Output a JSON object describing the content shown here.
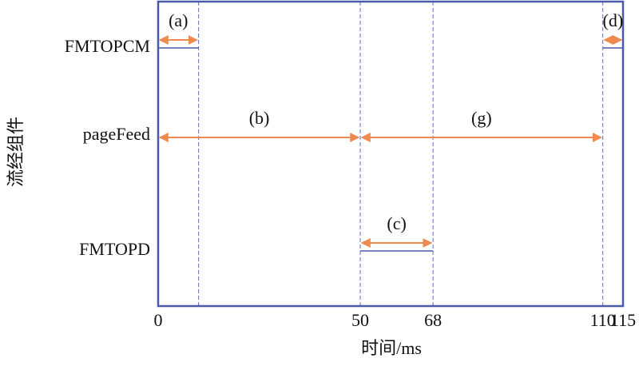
{
  "chart_data": {
    "type": "timeline",
    "xlabel": "时间/ms",
    "ylabel": "流经组件",
    "xlim": [
      0,
      115
    ],
    "xticks": [
      0,
      50,
      68,
      110,
      115
    ],
    "arrow_color": "#ee8a4f",
    "frame_color": "#4a5aa8",
    "guide_color": "#5b6cc0",
    "rows": [
      {
        "name": "FMTOPCM",
        "underline": true,
        "spans": [
          {
            "label": "(a)",
            "start": 0,
            "end": 10
          },
          {
            "label": "(d)",
            "start": 110,
            "end": 115
          }
        ]
      },
      {
        "name": "pageFeed",
        "underline": false,
        "spans": [
          {
            "label": "(b)",
            "start": 0,
            "end": 50
          },
          {
            "label": "(g)",
            "start": 50,
            "end": 110
          }
        ]
      },
      {
        "name": "FMTOPD",
        "underline": true,
        "spans": [
          {
            "label": "(c)",
            "start": 50,
            "end": 68
          }
        ]
      }
    ]
  }
}
